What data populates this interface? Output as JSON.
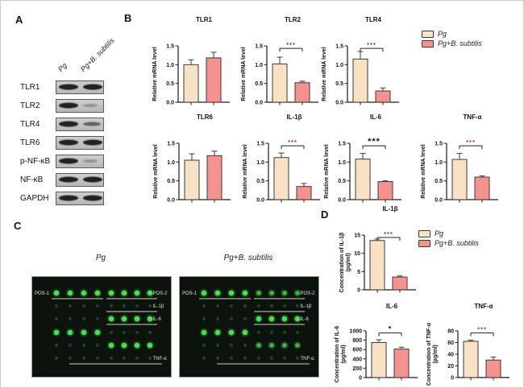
{
  "panels": {
    "a": {
      "label": "A",
      "lanes": [
        "Pg",
        "Pg+B. subtilis"
      ],
      "rows": [
        {
          "label": "TLR1",
          "bands": [
            "strong",
            "strong"
          ]
        },
        {
          "label": "TLR2",
          "bands": [
            "strong",
            "weak"
          ]
        },
        {
          "label": "TLR4",
          "bands": [
            "strong",
            "medium"
          ]
        },
        {
          "label": "TLR6",
          "bands": [
            "strong",
            "strong"
          ]
        },
        {
          "label": "p-NF-κB",
          "bands": [
            "strong",
            "weak"
          ]
        },
        {
          "label": "NF-κB",
          "bands": [
            "strong",
            "strong"
          ]
        },
        {
          "label": "GAPDH",
          "bands": [
            "strong",
            "strong"
          ]
        }
      ]
    },
    "b": {
      "label": "B"
    },
    "c": {
      "label": "C",
      "blots": [
        {
          "title": "Pg",
          "rows": [
            {
              "left": "hi",
              "right": "hi",
              "label_left": "POS-1",
              "label_right": "POS-2",
              "underlines": [
                "left",
                "right"
              ]
            },
            {
              "left": "lo",
              "right": "lo",
              "label_right": "IL-1β",
              "underlines": [
                "right"
              ]
            },
            {
              "left": "lo",
              "right": "hi",
              "label_right": "IL-6",
              "underlines": [
                "right"
              ]
            },
            {
              "left": "hi",
              "right": "lo"
            },
            {
              "left": "lo",
              "right": "hi"
            },
            {
              "left": "lo",
              "right": "lo",
              "label_right": "TNF-α",
              "underlines": [
                "long"
              ]
            }
          ]
        },
        {
          "title": "Pg+B. subtilis",
          "rows": [
            {
              "left": "hi",
              "right": "med",
              "label_left": "POS-1",
              "label_right": "POS-2",
              "underlines": [
                "left",
                "right"
              ]
            },
            {
              "left": "lo",
              "right": "lo",
              "label_right": "IL-1β",
              "underlines": [
                "right"
              ]
            },
            {
              "left": "lo",
              "right": "hi",
              "label_right": "IL-6",
              "underlines": [
                "right"
              ]
            },
            {
              "left": "hi",
              "right": "lo"
            },
            {
              "left": "lo",
              "right": "med"
            },
            {
              "left": "lo",
              "right": "lo",
              "label_right": "TNF-α",
              "underlines": [
                "long"
              ]
            }
          ]
        }
      ]
    },
    "d": {
      "label": "D"
    }
  },
  "legend": {
    "items": [
      {
        "label": "Pg",
        "color": "#f9e2c3"
      },
      {
        "label": "Pg+B. subtilis",
        "color": "#f5928d"
      }
    ]
  },
  "chart_data": [
    {
      "id": "b_tlr1",
      "type": "bar",
      "title": "TLR1",
      "ylabel": [
        "Relative mRNA level"
      ],
      "categories": [
        "Pg",
        "Pg+B. subtilis"
      ],
      "values": [
        1.0,
        1.18
      ],
      "errors": [
        0.13,
        0.15
      ],
      "ylim": [
        0,
        1.5
      ],
      "yticks": [
        "0.0",
        "0.5",
        "1.0",
        "1.5"
      ],
      "sig": null
    },
    {
      "id": "b_tlr2",
      "type": "bar",
      "title": "TLR2",
      "ylabel": [
        "Relative mRNA level"
      ],
      "categories": [
        "Pg",
        "Pg+B. subtilis"
      ],
      "values": [
        1.02,
        0.52
      ],
      "errors": [
        0.18,
        0.04
      ],
      "ylim": [
        0,
        1.5
      ],
      "yticks": [
        "0.0",
        "0.5",
        "1.0",
        "1.5"
      ],
      "sig": {
        "stars": "***",
        "color": "#9e2b24",
        "size": 7.5
      }
    },
    {
      "id": "b_tlr4",
      "type": "bar",
      "title": "TLR4",
      "ylabel": [
        "Relative mRNA level"
      ],
      "categories": [
        "Pg",
        "Pg+B. subtilis"
      ],
      "values": [
        1.15,
        0.3
      ],
      "errors": [
        0.2,
        0.08
      ],
      "ylim": [
        0,
        1.5
      ],
      "yticks": [
        "0.0",
        "0.5",
        "1.0",
        "1.5"
      ],
      "sig": {
        "stars": "***",
        "color": "#9e2b24",
        "size": 7.5
      }
    },
    {
      "id": "b_tlr6",
      "type": "bar",
      "title": "TLR6",
      "ylabel": [
        "Relative mRNA level"
      ],
      "categories": [
        "Pg",
        "Pg+B. subtilis"
      ],
      "values": [
        1.05,
        1.17
      ],
      "errors": [
        0.17,
        0.12
      ],
      "ylim": [
        0,
        1.5
      ],
      "yticks": [
        "0.0",
        "0.5",
        "1.0",
        "1.5"
      ],
      "sig": null
    },
    {
      "id": "b_il1b",
      "type": "bar",
      "title": "IL-1β",
      "ylabel": [
        "Relative mRNA level"
      ],
      "categories": [
        "Pg",
        "Pg+B. subtilis"
      ],
      "values": [
        1.12,
        0.35
      ],
      "errors": [
        0.12,
        0.08
      ],
      "ylim": [
        0,
        1.5
      ],
      "yticks": [
        "0.0",
        "0.5",
        "1.0",
        "1.5"
      ],
      "sig": {
        "stars": "***",
        "color": "#9e2b24",
        "size": 7.5
      }
    },
    {
      "id": "b_il6",
      "type": "bar",
      "title": "IL-6",
      "ylabel": [
        "Relative mRNA level"
      ],
      "categories": [
        "Pg",
        "Pg+B. subtilis"
      ],
      "values": [
        1.08,
        0.48
      ],
      "errors": [
        0.15,
        0.02
      ],
      "ylim": [
        0,
        1.5
      ],
      "yticks": [
        "0.0",
        "0.5",
        "1.0",
        "1.5"
      ],
      "sig": {
        "stars": "***",
        "color": "#161616",
        "size": 11
      }
    },
    {
      "id": "b_tnfa",
      "type": "bar",
      "title": "TNF-α",
      "ylabel": [
        "Relative mRNA level"
      ],
      "categories": [
        "Pg",
        "Pg+B. subtilis"
      ],
      "values": [
        1.07,
        0.6
      ],
      "errors": [
        0.16,
        0.03
      ],
      "ylim": [
        0,
        1.5
      ],
      "yticks": [
        "0.0",
        "0.5",
        "1.0",
        "1.5"
      ],
      "sig": {
        "stars": "***",
        "color": "#9e2b24",
        "size": 7.5
      }
    },
    {
      "id": "d_il1b",
      "type": "bar",
      "title": "IL-1β",
      "ylabel": [
        "Concentration of IL-1β",
        "(pg/ml)"
      ],
      "categories": [
        "Pg",
        "Pg+B. subtilis"
      ],
      "values": [
        13.5,
        3.5
      ],
      "errors": [
        0.4,
        0.3
      ],
      "ylim": [
        0,
        15
      ],
      "yticks": [
        "0",
        "5",
        "10",
        "15"
      ],
      "sig": {
        "stars": "***",
        "color": "#9e2b24",
        "size": 7.5
      }
    },
    {
      "id": "d_il6",
      "type": "bar",
      "title": "IL-6",
      "ylabel": [
        "Concentration of IL-6",
        "(pg/ml)"
      ],
      "categories": [
        "Pg",
        "Pg+B. subtilis"
      ],
      "values": [
        750,
        610
      ],
      "errors": [
        60,
        40
      ],
      "ylim": [
        0,
        1000
      ],
      "yticks": [
        "0",
        "200",
        "400",
        "600",
        "800",
        "1000"
      ],
      "sig": {
        "stars": "*",
        "color": "#161616",
        "size": 9
      }
    },
    {
      "id": "d_tnfa",
      "type": "bar",
      "title": "TNF-α",
      "ylabel": [
        "Concentration of TNF-α",
        "(pg/ml)"
      ],
      "categories": [
        "Pg",
        "Pg+B. subtilis"
      ],
      "values": [
        62,
        30
      ],
      "errors": [
        2,
        5
      ],
      "ylim": [
        0,
        80
      ],
      "yticks": [
        "0",
        "20",
        "40",
        "60",
        "80"
      ],
      "sig": {
        "stars": "***",
        "color": "#9e2b24",
        "size": 7.5
      }
    }
  ]
}
